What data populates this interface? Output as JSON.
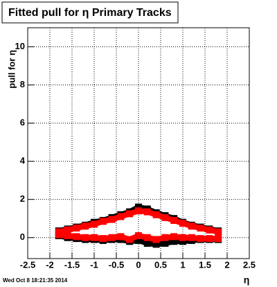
{
  "chart_data": {
    "type": "line",
    "title": "Fitted pull for  η  Primary Tracks",
    "x_label": "η",
    "y_label": "pull for η",
    "x": [
      -1.8,
      -1.6,
      -1.4,
      -1.2,
      -1.0,
      -0.8,
      -0.6,
      -0.4,
      -0.2,
      0.0,
      0.2,
      0.4,
      0.6,
      0.8,
      1.0,
      1.2,
      1.4,
      1.6,
      1.8
    ],
    "series": [
      {
        "color": "#000000",
        "values": [
          0.35,
          0.45,
          0.55,
          0.65,
          0.8,
          0.9,
          1.05,
          1.2,
          1.35,
          1.6,
          1.5,
          1.3,
          1.15,
          1.0,
          0.8,
          0.65,
          0.55,
          0.45,
          0.35
        ]
      },
      {
        "color": "#000000",
        "values": [
          0.1,
          0.0,
          -0.05,
          -0.1,
          -0.1,
          -0.15,
          -0.1,
          -0.1,
          -0.2,
          -0.15,
          -0.3,
          -0.35,
          -0.3,
          -0.2,
          -0.2,
          -0.15,
          -0.1,
          -0.1,
          -0.1
        ]
      },
      {
        "color": "#ff0000",
        "values": [
          0.3,
          0.4,
          0.5,
          0.6,
          0.7,
          0.85,
          0.95,
          1.1,
          1.25,
          1.4,
          1.35,
          1.2,
          1.05,
          0.9,
          0.75,
          0.6,
          0.5,
          0.4,
          0.3
        ]
      },
      {
        "color": "#ff0000",
        "values": [
          0.15,
          0.1,
          0.05,
          0.0,
          0.0,
          -0.05,
          0.0,
          0.05,
          -0.1,
          0.1,
          0.0,
          -0.1,
          0.0,
          0.05,
          0.0,
          0.0,
          -0.05,
          -0.05,
          -0.05
        ]
      }
    ],
    "xlim": [
      -2.5,
      2.5
    ],
    "xticks": [
      -2.5,
      -2,
      -1.5,
      -1,
      -0.5,
      0,
      0.5,
      1,
      1.5,
      2,
      2.5
    ],
    "ylim": [
      -1.1,
      11.0
    ],
    "yticks": [
      0,
      2,
      4,
      6,
      8,
      10
    ],
    "grid": true
  },
  "timestamp": "Wed Oct  8 18:21:35 2014"
}
